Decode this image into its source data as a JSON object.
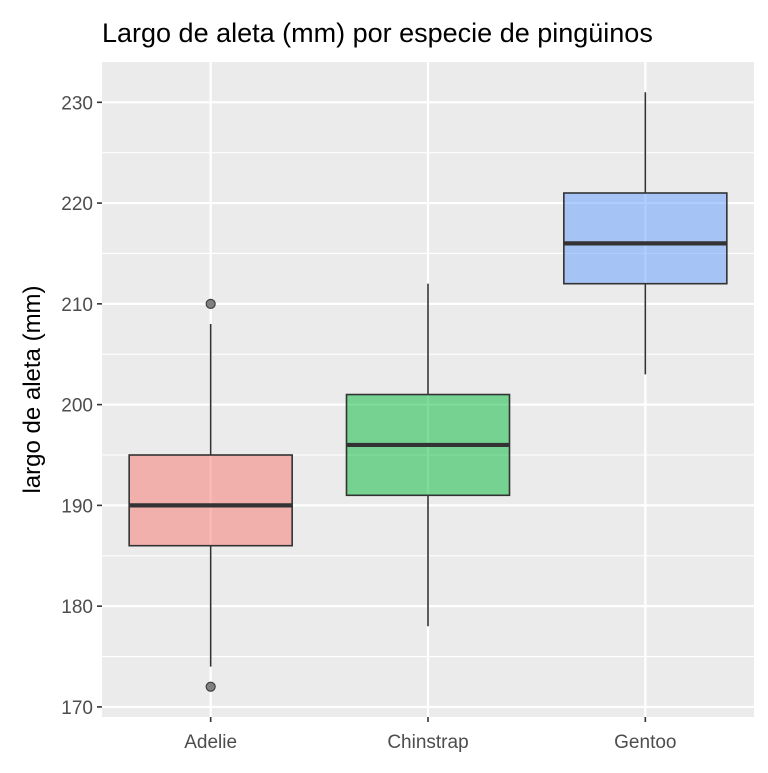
{
  "chart_data": {
    "type": "boxplot",
    "title": "Largo de aleta (mm) por especie de pingüinos",
    "xlabel": "",
    "ylabel": "largo de aleta (mm)",
    "categories": [
      "Adelie",
      "Chinstrap",
      "Gentoo"
    ],
    "ylim": [
      169,
      234
    ],
    "y_ticks": [
      170,
      180,
      190,
      200,
      210,
      220,
      230
    ],
    "grid": true,
    "legend": "none",
    "boxes": [
      {
        "category": "Adelie",
        "whisker_low": 174,
        "q1": 186,
        "median": 190,
        "q3": 195,
        "whisker_high": 208,
        "outliers": [
          172,
          210
        ],
        "color": "#F8766D"
      },
      {
        "category": "Chinstrap",
        "whisker_low": 178,
        "q1": 191,
        "median": 196,
        "q3": 201,
        "whisker_high": 212,
        "outliers": [],
        "color": "#00BA38"
      },
      {
        "category": "Gentoo",
        "whisker_low": 203,
        "q1": 212,
        "median": 216,
        "q3": 221,
        "whisker_high": 231,
        "outliers": [],
        "color": "#619CFF"
      }
    ]
  }
}
